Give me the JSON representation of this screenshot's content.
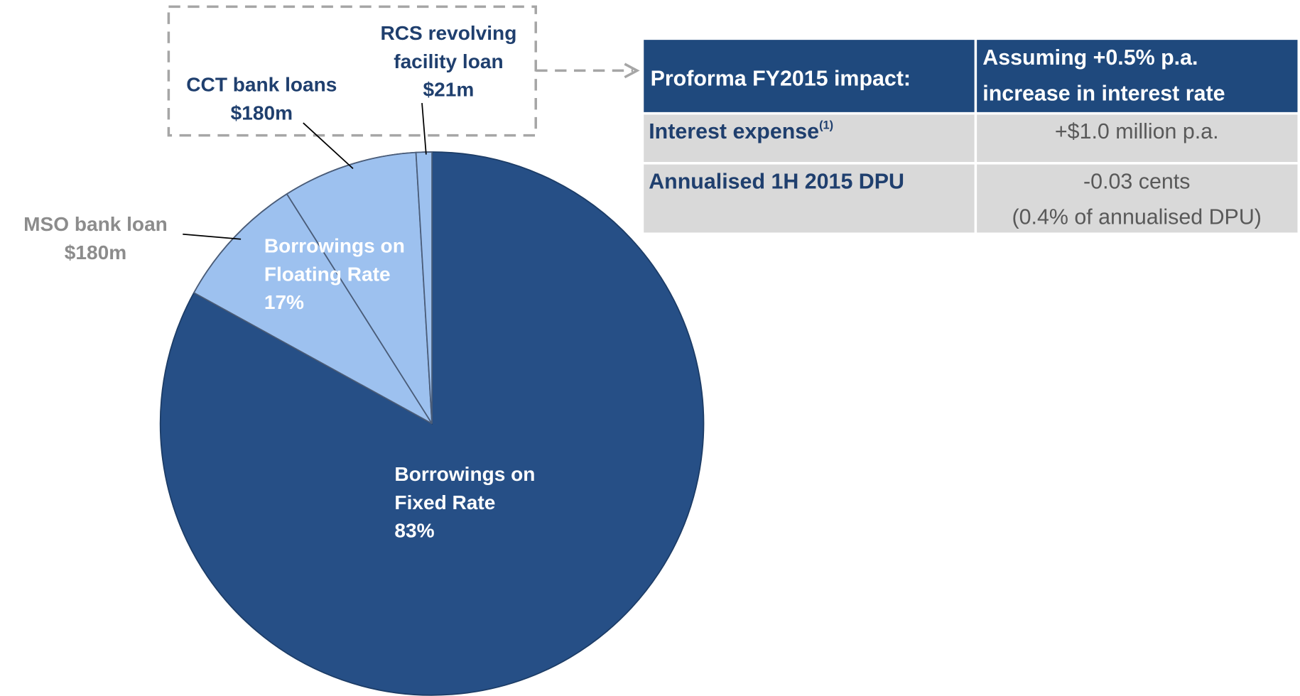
{
  "chart_data": {
    "type": "pie",
    "slices": [
      {
        "name": "Borrowings on Fixed Rate",
        "value": 83,
        "value_label": "83%",
        "color": "#264f86"
      },
      {
        "name": "Borrowings on Floating Rate",
        "value": 17,
        "value_label": "17%",
        "color": "#9dc1ef",
        "breakdown": [
          {
            "name": "MSO bank loan",
            "value": 180,
            "value_label": "$180m"
          },
          {
            "name": "CCT bank loans",
            "value": 180,
            "value_label": "$180m"
          },
          {
            "name": "RCS revolving facility loan",
            "value": 21,
            "value_label": "$21m"
          }
        ]
      }
    ]
  },
  "table": {
    "header": [
      [
        "Proforma FY2015 impact:"
      ],
      [
        "Assuming +0.5% p.a.",
        "increase in interest rate"
      ]
    ],
    "rows": [
      {
        "label": "Interest expense",
        "footnote": "(1)",
        "value": [
          "+$1.0 million p.a."
        ]
      },
      {
        "label": "Annualised 1H 2015 DPU",
        "value": [
          "-0.03 cents",
          "(0.4% of annualised DPU)"
        ]
      }
    ]
  }
}
